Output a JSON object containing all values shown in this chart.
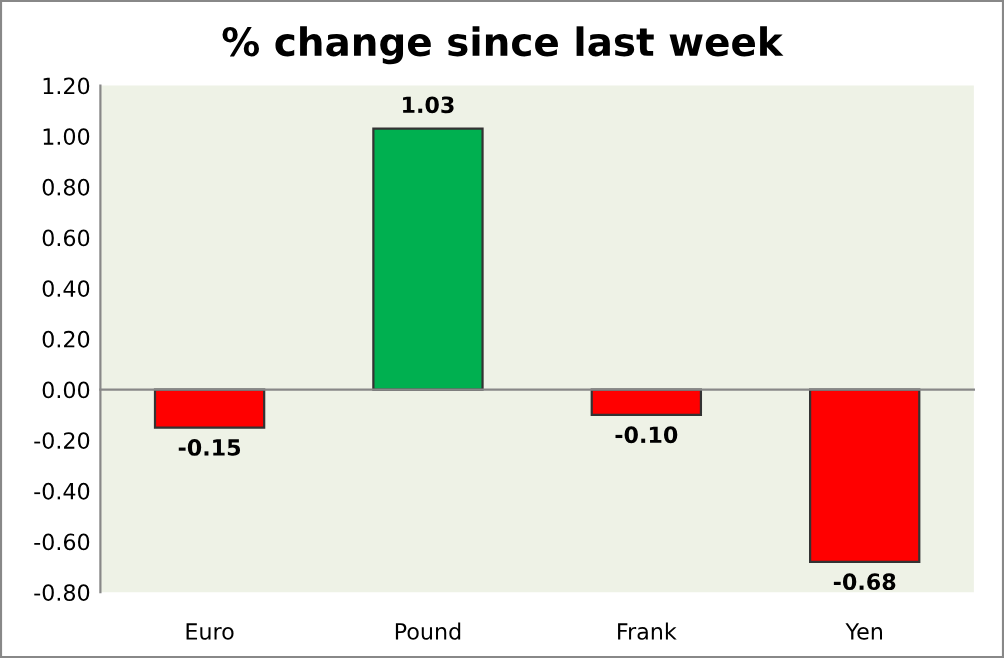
{
  "chart_data": {
    "type": "bar",
    "title": "% change since last week",
    "categories": [
      "Euro",
      "Pound",
      "Frank",
      "Yen"
    ],
    "values": [
      -0.15,
      1.03,
      -0.1,
      -0.68
    ],
    "colors": [
      "#ff0000",
      "#00b050",
      "#ff0000",
      "#ff0000"
    ],
    "value_labels": [
      "-0.15",
      "1.03",
      "-0.10",
      "-0.68"
    ],
    "ylim": [
      -0.8,
      1.2
    ],
    "yticks": [
      {
        "value": -0.8,
        "label": "-0.80"
      },
      {
        "value": -0.6,
        "label": "-0.60"
      },
      {
        "value": -0.4,
        "label": "-0.40"
      },
      {
        "value": -0.2,
        "label": "-0.20"
      },
      {
        "value": 0,
        "label": "0.00"
      },
      {
        "value": 0.2,
        "label": "0.20"
      },
      {
        "value": 0.4,
        "label": "0.40"
      },
      {
        "value": 0.6,
        "label": "0.60"
      },
      {
        "value": 0.8,
        "label": "0.80"
      },
      {
        "value": 1.0,
        "label": "1.00"
      },
      {
        "value": 1.2,
        "label": "1.20"
      }
    ]
  }
}
